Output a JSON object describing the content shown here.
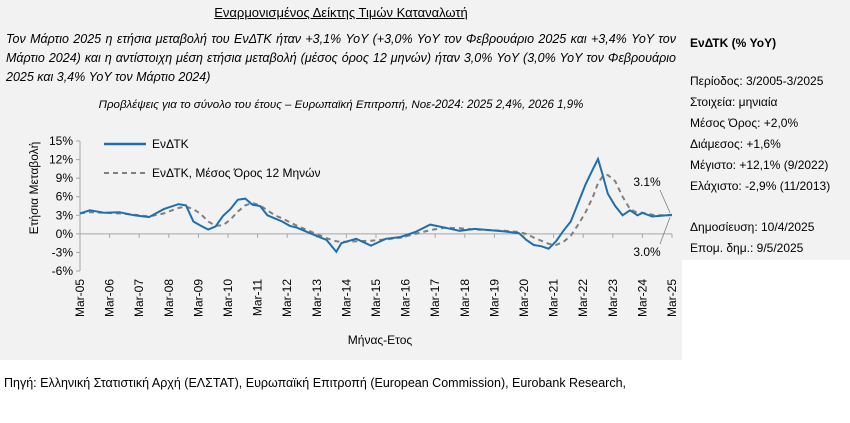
{
  "header": {
    "title": "Εναρμονισμένος Δείκτης Τιμών Καταναλωτή",
    "summary": "Τον Μάρτιο 2025 η ετήσια μεταβολή του ΕνΔΤΚ ήταν +3,1% YoY (+3,0% YoY τον Φεβρουάριο 2025 και +3,4% YoY τον Μάρτιο 2024) και η αντίστοιχη μέση ετήσια μεταβολή (μέσος όρος 12 μηνών) ήταν 3,0% YoY (3,0% YoY τον Φεβρουάριο 2025 και 3,4% YoY τον Μάρτιο 2024)",
    "forecast": "Προβλέψεις για το σύνολο του έτους – Ευρωπαϊκή Επιτροπή, Νοε-2024: 2025 2,4%, 2026 1,9%"
  },
  "side_panel": {
    "title": "ΕνΔΤΚ (% YoY)",
    "period": "Περίοδος: 3/2005-3/2025",
    "data_type": "Στοιχεία: μηνιαία",
    "mean": "Μέσος Όρος: +2,0%",
    "median": "Διάμεσος: +1,6%",
    "max": "Μέγιστο: +12,1% (9/2022)",
    "min": "Ελάχιστο: -2,9% (11/2013)",
    "published": "Δημοσίευση: 10/4/2025",
    "next_publication": "Επομ. δημ.: 9/5/2025"
  },
  "source": "Πηγή: Ελληνική Στατιστική Αρχή (ΕΛΣΤΑΤ), Ευρωπαϊκή Επιτροπή (European Commission), Eurobank Research,",
  "colors": {
    "series_main": "#1f6fb0",
    "series_avg": "#7f7f7f",
    "panel_bg": "#f2f2f2"
  },
  "chart_data": {
    "type": "line",
    "xlabel": "Μήνας-Ετος",
    "ylabel": "Ετήσια Μεταβολή",
    "ylim": [
      -6,
      15
    ],
    "yticks": [
      -6,
      -3,
      0,
      3,
      6,
      9,
      12,
      15
    ],
    "ytick_labels": [
      "-6%",
      "-3%",
      "0%",
      "3%",
      "6%",
      "9%",
      "12%",
      "15%"
    ],
    "xtick_labels": [
      "Mar-05",
      "Mar-06",
      "Mar-07",
      "Mar-08",
      "Mar-09",
      "Mar-10",
      "Mar-11",
      "Mar-12",
      "Mar-13",
      "Mar-14",
      "Mar-15",
      "Mar-16",
      "Mar-17",
      "Mar-18",
      "Mar-19",
      "Mar-20",
      "Mar-21",
      "Mar-22",
      "Mar-23",
      "Mar-24",
      "Mar-25"
    ],
    "legend": "top-left",
    "grid": false,
    "annotations": [
      {
        "text": "3.1%",
        "series": 0
      },
      {
        "text": "3.0%",
        "series": 1
      }
    ],
    "x_years": [
      2005.17,
      2005.5,
      2006.0,
      2006.5,
      2007.0,
      2007.5,
      2008.0,
      2008.5,
      2008.75,
      2009.0,
      2009.25,
      2009.5,
      2009.75,
      2010.0,
      2010.25,
      2010.5,
      2010.75,
      2011.0,
      2011.25,
      2011.5,
      2011.75,
      2012.0,
      2012.25,
      2012.5,
      2012.75,
      2013.0,
      2013.25,
      2013.5,
      2013.83,
      2014.0,
      2014.5,
      2015.0,
      2015.5,
      2016.0,
      2016.5,
      2017.0,
      2017.5,
      2018.0,
      2018.5,
      2019.0,
      2019.5,
      2020.0,
      2020.25,
      2020.5,
      2020.75,
      2021.0,
      2021.25,
      2021.5,
      2021.75,
      2022.0,
      2022.25,
      2022.5,
      2022.67,
      2022.83,
      2023.0,
      2023.25,
      2023.5,
      2023.75,
      2024.0,
      2024.17,
      2024.5,
      2024.75,
      2025.0,
      2025.17
    ],
    "series": [
      {
        "name": "ΕνΔΤΚ",
        "values": [
          3.3,
          3.8,
          3.4,
          3.5,
          3.0,
          2.7,
          4.0,
          4.8,
          4.6,
          2.0,
          1.3,
          0.7,
          1.2,
          2.9,
          4.0,
          5.5,
          5.7,
          4.7,
          4.5,
          3.0,
          2.5,
          2.0,
          1.3,
          1.0,
          0.5,
          0.0,
          -0.5,
          -1.0,
          -2.9,
          -1.5,
          -0.8,
          -1.9,
          -0.8,
          -0.5,
          0.3,
          1.5,
          1.0,
          0.5,
          0.8,
          0.6,
          0.4,
          0.1,
          -1.0,
          -1.8,
          -2.0,
          -2.4,
          -1.2,
          0.5,
          2.0,
          5.0,
          8.0,
          10.5,
          12.1,
          9.5,
          6.5,
          4.5,
          3.0,
          3.8,
          3.0,
          3.4,
          2.8,
          2.9,
          3.0,
          3.1
        ]
      },
      {
        "name": "ΕνΔΤΚ, Μέσος Όρος 12 Μηνών",
        "values": [
          3.3,
          3.5,
          3.4,
          3.3,
          3.1,
          2.8,
          3.3,
          4.2,
          4.4,
          4.0,
          3.2,
          2.0,
          1.3,
          1.4,
          2.3,
          3.6,
          4.6,
          5.0,
          4.6,
          3.8,
          3.0,
          2.5,
          1.9,
          1.3,
          0.8,
          0.3,
          -0.2,
          -0.7,
          -1.2,
          -1.3,
          -1.2,
          -1.1,
          -0.9,
          -0.6,
          0.0,
          0.6,
          1.0,
          0.9,
          0.7,
          0.6,
          0.5,
          0.3,
          0.0,
          -0.6,
          -1.1,
          -1.6,
          -1.8,
          -1.3,
          -0.3,
          1.5,
          3.5,
          6.0,
          8.2,
          9.3,
          9.5,
          8.5,
          6.0,
          4.0,
          3.4,
          3.4,
          3.1,
          3.0,
          3.0,
          3.0
        ]
      }
    ]
  }
}
